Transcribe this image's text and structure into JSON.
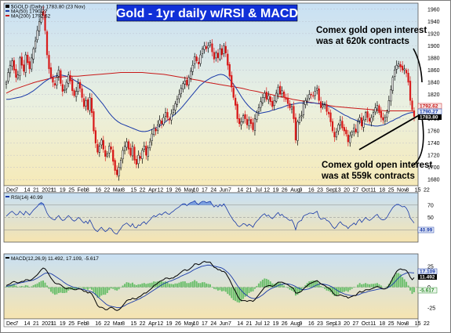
{
  "chart_data": {
    "title": "Gold - 1yr daily w/RSI & MACD",
    "price_panel": {
      "type": "candlestick",
      "legend": [
        "$GOLD (Daily) 1783.80 (23 Nov)",
        "MA(50) 1790.27",
        "MA(200) 1792.62"
      ],
      "ylim": [
        1670,
        1970
      ],
      "yticks": [
        "1680",
        "1700",
        "1720",
        "1740",
        "1760",
        "1780",
        "1800",
        "1820",
        "1840",
        "1860",
        "1880",
        "1900",
        "1920",
        "1940",
        "1960"
      ],
      "close_series": [
        1840,
        1856,
        1868,
        1875,
        1860,
        1848,
        1852,
        1880,
        1868,
        1858,
        1885,
        1872,
        1862,
        1880,
        1895,
        1908,
        1925,
        1940,
        1955,
        1950,
        1925,
        1885,
        1862,
        1848,
        1840,
        1835,
        1848,
        1860,
        1838,
        1825,
        1828,
        1840,
        1852,
        1842,
        1826,
        1818,
        1825,
        1838,
        1830,
        1815,
        1800,
        1810,
        1795,
        1815,
        1790,
        1760,
        1740,
        1725,
        1735,
        1745,
        1730,
        1718,
        1722,
        1735,
        1730,
        1710,
        1695,
        1688,
        1700,
        1712,
        1728,
        1735,
        1742,
        1730,
        1720,
        1735,
        1712,
        1705,
        1720,
        1715,
        1728,
        1735,
        1720,
        1732,
        1742,
        1755,
        1765,
        1760,
        1770,
        1778,
        1772,
        1782,
        1790,
        1782,
        1778,
        1788,
        1795,
        1805,
        1812,
        1820,
        1830,
        1838,
        1842,
        1835,
        1848,
        1858,
        1868,
        1882,
        1875,
        1870,
        1885,
        1895,
        1900,
        1895,
        1900,
        1905,
        1890,
        1878,
        1888,
        1880,
        1895,
        1885,
        1900,
        1888,
        1868,
        1850,
        1832,
        1815,
        1802,
        1780,
        1772,
        1775,
        1785,
        1780,
        1770,
        1778,
        1772,
        1762,
        1780,
        1790,
        1798,
        1808,
        1815,
        1822,
        1812,
        1818,
        1808,
        1800,
        1810,
        1822,
        1832,
        1820,
        1826,
        1815,
        1812,
        1805,
        1798,
        1800,
        1780,
        1745,
        1775,
        1782,
        1785,
        1805,
        1810,
        1812,
        1820,
        1820,
        1818,
        1825,
        1830,
        1810,
        1798,
        1802,
        1805,
        1792,
        1788,
        1775,
        1760,
        1750,
        1758,
        1770,
        1778,
        1765,
        1760,
        1755,
        1742,
        1752,
        1758,
        1765,
        1758,
        1775,
        1782,
        1768,
        1778,
        1790,
        1782,
        1776,
        1782,
        1790,
        1798,
        1802,
        1790,
        1782,
        1778,
        1782,
        1790,
        1810,
        1828,
        1848,
        1860,
        1868,
        1870,
        1865,
        1860,
        1862,
        1855,
        1840,
        1810,
        1795,
        1783.8
      ],
      "ma50": [
        1812,
        1812,
        1813,
        1814,
        1815,
        1816,
        1818,
        1820,
        1823,
        1826,
        1830,
        1834,
        1838,
        1842,
        1845,
        1848,
        1850,
        1851,
        1852,
        1851,
        1850,
        1848,
        1845,
        1842,
        1839,
        1836,
        1833,
        1830,
        1827,
        1822,
        1816,
        1810,
        1804,
        1797,
        1790,
        1784,
        1779,
        1775,
        1772,
        1770,
        1768,
        1766,
        1764,
        1762,
        1760,
        1759,
        1759,
        1760,
        1762,
        1764,
        1766,
        1769,
        1772,
        1776,
        1780,
        1784,
        1788,
        1793,
        1798,
        1804,
        1810,
        1816,
        1822,
        1828,
        1834,
        1838,
        1842,
        1845,
        1848,
        1850,
        1852,
        1853,
        1852,
        1849,
        1844,
        1838,
        1831,
        1823,
        1815,
        1808,
        1802,
        1797,
        1793,
        1790,
        1789,
        1790,
        1791,
        1792,
        1794,
        1795,
        1797,
        1798,
        1800,
        1802,
        1803,
        1804,
        1805,
        1806,
        1806,
        1807,
        1807,
        1806,
        1806,
        1805,
        1805,
        1804,
        1802,
        1800,
        1798,
        1795,
        1792,
        1789,
        1786,
        1784,
        1781,
        1779,
        1777,
        1775,
        1773,
        1771,
        1770,
        1769,
        1768,
        1768,
        1769,
        1770,
        1772,
        1775,
        1777,
        1780,
        1782,
        1785,
        1787,
        1789,
        1790,
        1790.3
      ],
      "ma200": [
        1822,
        1828,
        1832,
        1836,
        1840,
        1843,
        1846,
        1848,
        1849,
        1850,
        1850,
        1851,
        1852,
        1853,
        1854,
        1855,
        1856,
        1856,
        1856,
        1856,
        1855,
        1854,
        1853,
        1851,
        1849,
        1847,
        1845,
        1843,
        1840,
        1838,
        1836,
        1834,
        1832,
        1830,
        1827,
        1825,
        1822,
        1820,
        1817,
        1815,
        1812,
        1810,
        1808,
        1806,
        1804,
        1802,
        1800,
        1799,
        1798,
        1797,
        1796,
        1795,
        1794,
        1793,
        1793,
        1793,
        1793,
        1792.6
      ],
      "annotations": [
        {
          "text": [
            "Comex gold open interest",
            "was at 620k contracts"
          ]
        },
        {
          "text": [
            "Comex gold open interest",
            "was at 559k contracts"
          ]
        }
      ],
      "price_tags": [
        "1792.62",
        "1790.27",
        "1783.80"
      ]
    },
    "rsi_panel": {
      "legend": "RSI(14) 40.99",
      "yticks": [
        "30",
        "50",
        "70"
      ],
      "levels": [
        30,
        70
      ],
      "tag": "40.99",
      "values": [
        52,
        55,
        58,
        60,
        57,
        54,
        55,
        60,
        57,
        54,
        60,
        57,
        54,
        58,
        62,
        65,
        68,
        72,
        74,
        72,
        65,
        57,
        52,
        49,
        47,
        46,
        50,
        53,
        48,
        45,
        46,
        50,
        53,
        50,
        46,
        44,
        46,
        50,
        48,
        44,
        41,
        44,
        40,
        46,
        40,
        33,
        29,
        27,
        31,
        34,
        30,
        27,
        29,
        33,
        32,
        27,
        24,
        23,
        28,
        32,
        37,
        39,
        41,
        38,
        35,
        40,
        34,
        33,
        38,
        37,
        41,
        43,
        39,
        43,
        46,
        50,
        53,
        51,
        54,
        56,
        54,
        57,
        59,
        56,
        55,
        58,
        60,
        63,
        65,
        67,
        70,
        72,
        72,
        69,
        72,
        74,
        75,
        77,
        73,
        71,
        74,
        76,
        76,
        74,
        75,
        76,
        71,
        67,
        70,
        67,
        71,
        68,
        72,
        67,
        61,
        55,
        50,
        45,
        42,
        37,
        35,
        37,
        40,
        39,
        36,
        39,
        37,
        34,
        40,
        44,
        47,
        51,
        54,
        56,
        52,
        54,
        50,
        48,
        51,
        55,
        58,
        53,
        55,
        51,
        50,
        47,
        45,
        46,
        40,
        30,
        41,
        44,
        45,
        52,
        54,
        55,
        57,
        57,
        56,
        58,
        60,
        51,
        47,
        48,
        49,
        45,
        44,
        40,
        35,
        32,
        35,
        40,
        43,
        39,
        37,
        36,
        32,
        36,
        38,
        41,
        38,
        44,
        47,
        42,
        46,
        50,
        47,
        45,
        47,
        50,
        53,
        55,
        50,
        47,
        46,
        47,
        50,
        56,
        61,
        66,
        69,
        71,
        71,
        69,
        67,
        68,
        65,
        59,
        49,
        45,
        40.99
      ]
    },
    "macd_panel": {
      "legend": "MACD(12,26,9) 11.492, 17.109, -5.617",
      "yticks": [
        "-25",
        "0",
        "25"
      ],
      "tags": [
        "17.109",
        "11.492",
        "-5.617"
      ],
      "macd": [
        2,
        3,
        4,
        6,
        7,
        6,
        5,
        6,
        7,
        7,
        9,
        9,
        8,
        9,
        11,
        13,
        15,
        18,
        21,
        23,
        22,
        19,
        15,
        11,
        8,
        5,
        4,
        4,
        3,
        1,
        -1,
        -2,
        -1,
        -1,
        -2,
        -3,
        -3,
        -2,
        -2,
        -3,
        -5,
        -5,
        -7,
        -6,
        -8,
        -12,
        -17,
        -22,
        -24,
        -24,
        -25,
        -27,
        -27,
        -25,
        -24,
        -25,
        -27,
        -28,
        -27,
        -25,
        -22,
        -19,
        -16,
        -15,
        -15,
        -13,
        -14,
        -14,
        -12,
        -11,
        -9,
        -7,
        -7,
        -5,
        -3,
        -1,
        2,
        3,
        5,
        7,
        8,
        9,
        11,
        11,
        10,
        11,
        11,
        13,
        14,
        16,
        18,
        20,
        21,
        20,
        21,
        23,
        25,
        28,
        28,
        27,
        28,
        30,
        31,
        30,
        30,
        30,
        27,
        24,
        23,
        21,
        21,
        19,
        19,
        17,
        13,
        9,
        4,
        -1,
        -5,
        -10,
        -14,
        -16,
        -16,
        -16,
        -17,
        -16,
        -16,
        -17,
        -15,
        -12,
        -9,
        -6,
        -3,
        0,
        1,
        2,
        2,
        1,
        2,
        4,
        6,
        6,
        6,
        5,
        4,
        3,
        1,
        0,
        -2,
        -7,
        -7,
        -6,
        -5,
        -2,
        0,
        2,
        4,
        5,
        6,
        7,
        8,
        6,
        4,
        3,
        2,
        0,
        -1,
        -3,
        -6,
        -9,
        -10,
        -10,
        -9,
        -10,
        -11,
        -11,
        -13,
        -12,
        -11,
        -10,
        -10,
        -7,
        -5,
        -6,
        -5,
        -3,
        -3,
        -3,
        -2,
        -1,
        0,
        1,
        0,
        -1,
        -2,
        -2,
        -1,
        2,
        6,
        11,
        15,
        19,
        21,
        22,
        21,
        21,
        20,
        17,
        12,
        9,
        11.49
      ],
      "signal": [
        1,
        1.5,
        2,
        2.5,
        3.5,
        4,
        4.5,
        5,
        5.5,
        6,
        6.5,
        7,
        7.5,
        8,
        8.5,
        9.5,
        10.5,
        12,
        13.5,
        15,
        16.5,
        17,
        17,
        16.5,
        15.5,
        14,
        12.5,
        11,
        9.5,
        8,
        6,
        4.5,
        3,
        2,
        1,
        0,
        -0.5,
        -1,
        -1.5,
        -2,
        -2.5,
        -3,
        -4,
        -4.5,
        -5,
        -6,
        -7.5,
        -9.5,
        -12,
        -14,
        -16,
        -18,
        -20,
        -21.5,
        -22.5,
        -23,
        -23.5,
        -24,
        -24.5,
        -24.5,
        -24,
        -23,
        -22,
        -20.5,
        -19.5,
        -18.5,
        -17.5,
        -16.5,
        -15.5,
        -14.5,
        -13.5,
        -12,
        -11,
        -9.5,
        -8,
        -6.5,
        -5,
        -3.5,
        -2,
        -0.5,
        1,
        2.5,
        4,
        5,
        6,
        7,
        7.5,
        8.5,
        9.5,
        10.5,
        11.5,
        13,
        14,
        15,
        16,
        17,
        18,
        19.5,
        21,
        22,
        23,
        24,
        25,
        25.5,
        26,
        26.5,
        26.5,
        26,
        25.5,
        25,
        24.5,
        24,
        23.5,
        22.5,
        21,
        19,
        17,
        14.5,
        11.5,
        8,
        4.5,
        1,
        -2,
        -4.5,
        -7,
        -9,
        -10.5,
        -12,
        -13,
        -13.5,
        -13.5,
        -13,
        -12,
        -10.5,
        -9,
        -7,
        -5,
        -3.5,
        -2,
        -1,
        0,
        1,
        2,
        3,
        3.5,
        4,
        4,
        4,
        3.5,
        3,
        2,
        1,
        -0.5,
        -1.5,
        -2.5,
        -3,
        -3,
        -2.5,
        -2,
        -1,
        0,
        1.5,
        2.5,
        3.5,
        4,
        4,
        3.5,
        3,
        2.5,
        1.5,
        0.5,
        -1,
        -2.5,
        -4,
        -5.5,
        -6.5,
        -7.5,
        -8.5,
        -9,
        -9.5,
        -10,
        -10,
        -10,
        -9.5,
        -9,
        -8,
        -7,
        -6.5,
        -6,
        -5,
        -4.5,
        -4,
        -3.5,
        -3,
        -2.5,
        -2,
        -2,
        -2,
        -1.5,
        -1,
        0.5,
        2,
        4,
        6.5,
        9,
        11.5,
        13.5,
        15,
        16,
        17,
        17.5,
        17.5,
        17.3,
        17.11
      ]
    },
    "x_tick_labels": [
      "Dec",
      "7",
      "14",
      "21",
      "2021",
      "11",
      "19",
      "25",
      "Feb",
      "8",
      "16",
      "22",
      "Mar",
      "8",
      "15",
      "22",
      "Apr",
      "12",
      "19",
      "26",
      "May",
      "10",
      "17",
      "24",
      "Jun",
      "7",
      "14",
      "21",
      "Jul",
      "12",
      "19",
      "26",
      "Aug",
      "9",
      "16",
      "23",
      "Sep",
      "13",
      "20",
      "27",
      "Oct",
      "11",
      "18",
      "25",
      "Nov",
      "8",
      "15",
      "22"
    ]
  }
}
